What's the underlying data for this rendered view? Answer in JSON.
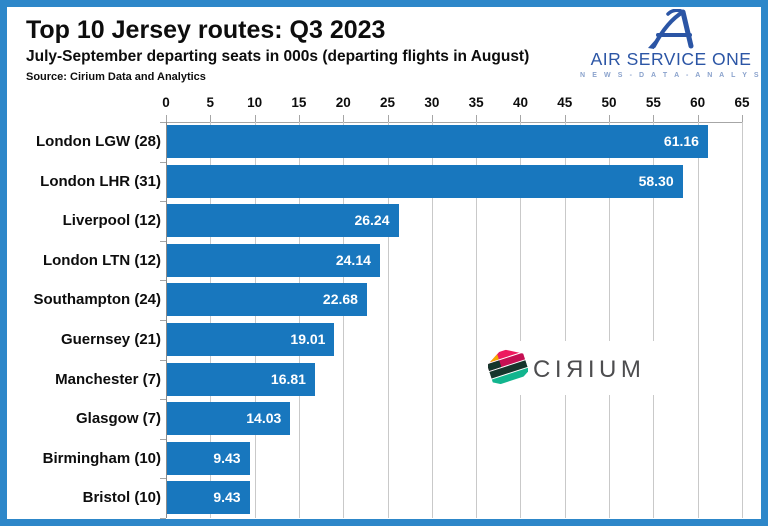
{
  "header": {
    "title": "Top 10 Jersey routes: Q3 2023",
    "subtitle": "July-September departing seats in 000s (departing flights in August)",
    "source": "Source: Cirium Data and Analytics"
  },
  "branding": {
    "air_service_one": {
      "name": "AIR SERVICE ONE",
      "tagline": "N E W S   -   D A T A   -   A N A L Y S I S",
      "color": "#2B55A5"
    },
    "cirium": {
      "name": "CIRIUM",
      "display": "CIЯIUM",
      "text_color": "#4D4D4F",
      "icon_colors": [
        "#F5A800",
        "#ED1A5F",
        "#C50F53",
        "#16352C",
        "#12B58E"
      ]
    }
  },
  "chart_data": {
    "type": "bar",
    "orientation": "horizontal",
    "title": "Top 10 Jersey routes: Q3 2023",
    "xlabel": "",
    "ylabel": "",
    "categories": [
      "London LGW (28)",
      "London LHR (31)",
      "Liverpool (12)",
      "London LTN (12)",
      "Southampton (24)",
      "Guernsey (21)",
      "Manchester (7)",
      "Glasgow (7)",
      "Birmingham (10)",
      "Bristol (10)"
    ],
    "values": [
      61.16,
      58.3,
      26.24,
      24.14,
      22.68,
      19.01,
      16.81,
      14.03,
      9.43,
      9.43
    ],
    "value_labels": [
      "61.16",
      "58.30",
      "26.24",
      "24.14",
      "22.68",
      "19.01",
      "16.81",
      "14.03",
      "9.43",
      "9.43"
    ],
    "xlim": [
      0,
      65
    ],
    "x_ticks": [
      0,
      5,
      10,
      15,
      20,
      25,
      30,
      35,
      40,
      45,
      50,
      55,
      60,
      65
    ],
    "x_tick_labels": [
      "0",
      "5",
      "10",
      "15",
      "20",
      "25",
      "30",
      "35",
      "40",
      "45",
      "50",
      "55",
      "60",
      "65"
    ],
    "grid": true,
    "axis_position": "top",
    "bar_color": "#1877BE",
    "frame_border_color": "#2D87C9",
    "value_label_color": "#FFFFFF"
  }
}
